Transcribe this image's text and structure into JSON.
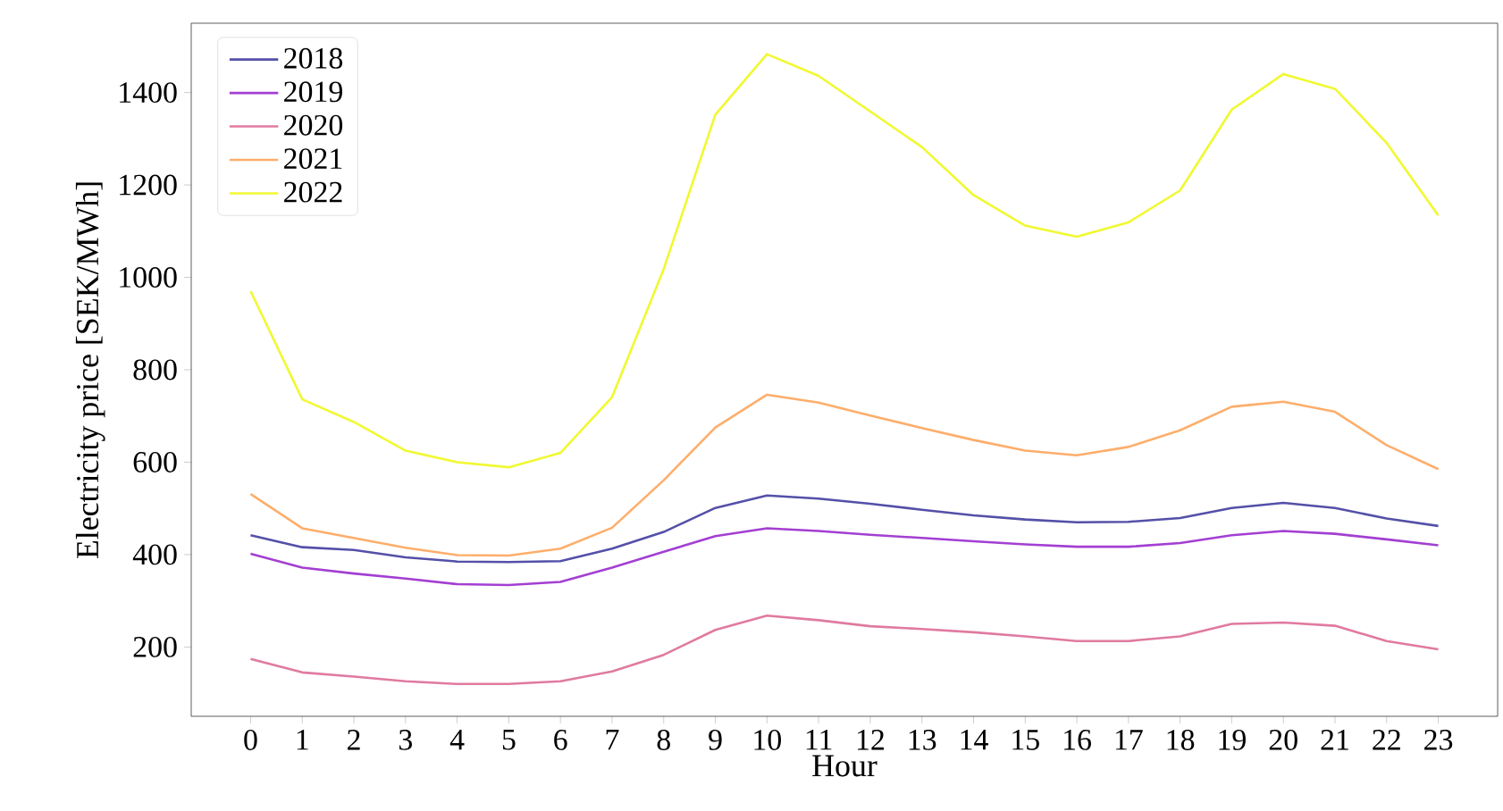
{
  "chart_data": {
    "type": "line",
    "xlabel": "Hour",
    "ylabel": "Electricity price [SEK/MWh]",
    "x": [
      0,
      1,
      2,
      3,
      4,
      5,
      6,
      7,
      8,
      9,
      10,
      11,
      12,
      13,
      14,
      15,
      16,
      17,
      18,
      19,
      20,
      21,
      22,
      23
    ],
    "xlim": [
      -1.15,
      24.15
    ],
    "ylim": [
      50,
      1550
    ],
    "xticks": [
      0,
      1,
      2,
      3,
      4,
      5,
      6,
      7,
      8,
      9,
      10,
      11,
      12,
      13,
      14,
      15,
      16,
      17,
      18,
      19,
      20,
      21,
      22,
      23
    ],
    "yticks": [
      200,
      400,
      600,
      800,
      1000,
      1200,
      1400
    ],
    "grid": false,
    "legend": "top left",
    "marker": "none",
    "line_style": "solid",
    "series": [
      {
        "name": "2018",
        "color": "#5450a8",
        "values": [
          442,
          416,
          410,
          394,
          385,
          384,
          386,
          413,
          449,
          501,
          528,
          521,
          510,
          497,
          485,
          476,
          470,
          471,
          479,
          501,
          512,
          501,
          478,
          462
        ]
      },
      {
        "name": "2019",
        "color": "#a33fd2",
        "values": [
          402,
          372,
          359,
          348,
          336,
          334,
          341,
          372,
          406,
          440,
          457,
          451,
          443,
          436,
          429,
          422,
          417,
          417,
          425,
          442,
          451,
          445,
          433,
          420
        ]
      },
      {
        "name": "2020",
        "color": "#e07aa0",
        "values": [
          174,
          145,
          136,
          126,
          120,
          120,
          126,
          147,
          183,
          237,
          268,
          258,
          245,
          239,
          232,
          223,
          213,
          213,
          223,
          250,
          253,
          246,
          213,
          195
        ]
      },
      {
        "name": "2021",
        "color": "#fdae6b",
        "values": [
          531,
          457,
          436,
          415,
          399,
          398,
          413,
          458,
          561,
          675,
          746,
          729,
          701,
          674,
          648,
          625,
          615,
          633,
          669,
          720,
          731,
          709,
          637,
          585
        ]
      },
      {
        "name": "2022",
        "color": "#f0f930",
        "values": [
          970,
          736,
          687,
          625,
          600,
          589,
          620,
          741,
          1018,
          1352,
          1483,
          1436,
          1359,
          1282,
          1178,
          1112,
          1088,
          1119,
          1188,
          1363,
          1440,
          1408,
          1291,
          1134
        ]
      }
    ]
  }
}
